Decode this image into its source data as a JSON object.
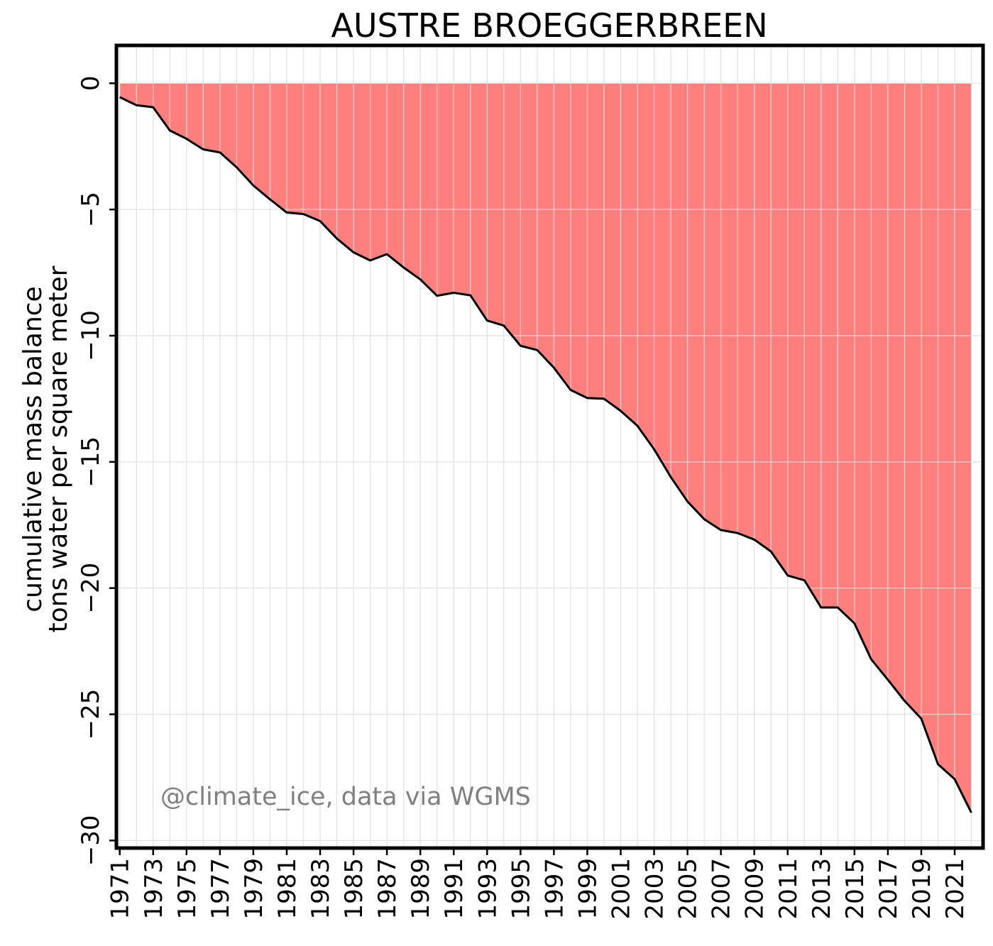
{
  "chart_data": {
    "type": "area",
    "title": "AUSTRE BROEGGERBREEN",
    "ylabel_line1": "cumulative mass balance",
    "ylabel_line2": "tons water per square meter",
    "watermark": "@climate_ice, data via WGMS",
    "xlim": [
      1970.8,
      2022.7
    ],
    "ylim": [
      -30.3,
      1.5
    ],
    "yticks": [
      0,
      -5,
      -10,
      -15,
      -20,
      -25,
      -30
    ],
    "ytick_labels": [
      "0",
      "−5",
      "−10",
      "−15",
      "−20",
      "−25",
      "−30"
    ],
    "xticks": [
      1971,
      1973,
      1975,
      1977,
      1979,
      1981,
      1983,
      1985,
      1987,
      1989,
      1991,
      1993,
      1995,
      1997,
      1999,
      2001,
      2003,
      2005,
      2007,
      2009,
      2011,
      2013,
      2015,
      2017,
      2019,
      2021
    ],
    "grid": true,
    "fill_color": "#ff7f7f",
    "line_color": "#000000",
    "watermark_color": "#808080",
    "x": [
      1971,
      1972,
      1973,
      1974,
      1975,
      1976,
      1977,
      1978,
      1979,
      1980,
      1981,
      1982,
      1983,
      1984,
      1985,
      1986,
      1987,
      1988,
      1989,
      1990,
      1991,
      1992,
      1993,
      1994,
      1995,
      1996,
      1997,
      1998,
      1999,
      2000,
      2001,
      2002,
      2003,
      2004,
      2005,
      2006,
      2007,
      2008,
      2009,
      2010,
      2011,
      2012,
      2013,
      2014,
      2015,
      2016,
      2017,
      2018,
      2019,
      2020,
      2021,
      2022
    ],
    "values": [
      -0.55,
      -0.87,
      -0.95,
      -1.87,
      -2.2,
      -2.62,
      -2.74,
      -3.33,
      -4.05,
      -4.6,
      -5.12,
      -5.18,
      -5.46,
      -6.15,
      -6.7,
      -7.02,
      -6.77,
      -7.3,
      -7.77,
      -8.42,
      -8.3,
      -8.4,
      -9.4,
      -9.6,
      -10.4,
      -10.57,
      -11.27,
      -12.15,
      -12.47,
      -12.5,
      -12.98,
      -13.57,
      -14.5,
      -15.6,
      -16.57,
      -17.27,
      -17.7,
      -17.82,
      -18.08,
      -18.55,
      -19.5,
      -19.69,
      -20.77,
      -20.77,
      -21.4,
      -22.82,
      -23.63,
      -24.47,
      -25.17,
      -26.98,
      -27.57,
      -28.9
    ]
  }
}
